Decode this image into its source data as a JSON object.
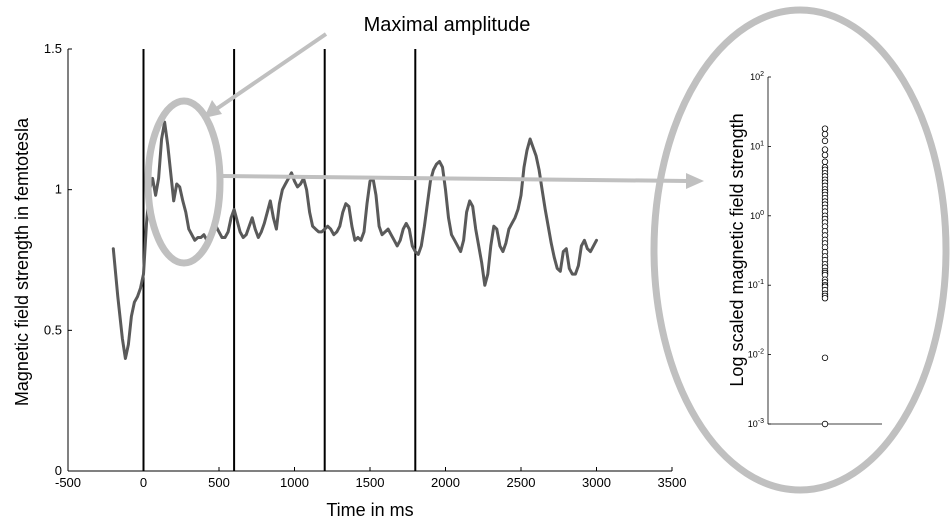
{
  "annotation": {
    "text": "Maximal amplitude"
  },
  "colors": {
    "signal": "#5a5a5a",
    "annotation": "#c0c0c0",
    "event_line": "#000000"
  },
  "chart_data": [
    {
      "type": "line",
      "title": "",
      "xlabel": "Time in ms",
      "ylabel": "Magnetic field strength in femtotesla",
      "xlim": [
        -500,
        3500
      ],
      "ylim": [
        0,
        1.5
      ],
      "x_ticks": [
        -500,
        0,
        500,
        1000,
        1500,
        2000,
        2500,
        3000,
        3500
      ],
      "y_ticks": [
        0,
        0.5,
        1,
        1.5
      ],
      "x_tick_labels": [
        "-500",
        "0",
        "500",
        "1000",
        "1500",
        "2000",
        "2500",
        "3000",
        "3500"
      ],
      "y_tick_labels": [
        "0",
        "0.5",
        "1",
        "1.5"
      ],
      "event_markers_ms": [
        0,
        600,
        1200,
        1800
      ],
      "grid": false,
      "series": [
        {
          "x": [
            -200,
            -170,
            -140,
            -120,
            -100,
            -80,
            -60,
            -40,
            -20,
            0,
            20,
            40,
            60,
            80,
            100,
            120,
            140,
            160,
            180,
            200,
            220,
            240,
            260,
            280,
            300,
            320,
            340,
            360,
            380,
            400,
            420,
            440,
            460,
            480,
            500,
            520,
            540,
            560,
            580,
            600,
            620,
            640,
            660,
            680,
            700,
            720,
            740,
            760,
            780,
            800,
            820,
            840,
            860,
            880,
            900,
            920,
            940,
            960,
            980,
            1000,
            1020,
            1040,
            1060,
            1080,
            1100,
            1120,
            1140,
            1160,
            1180,
            1200,
            1220,
            1240,
            1260,
            1280,
            1300,
            1320,
            1340,
            1360,
            1380,
            1400,
            1420,
            1440,
            1460,
            1480,
            1500,
            1520,
            1540,
            1560,
            1580,
            1600,
            1620,
            1640,
            1660,
            1680,
            1700,
            1720,
            1740,
            1760,
            1780,
            1800,
            1820,
            1840,
            1860,
            1880,
            1900,
            1920,
            1940,
            1960,
            1980,
            2000,
            2020,
            2040,
            2060,
            2080,
            2100,
            2120,
            2140,
            2160,
            2180,
            2200,
            2220,
            2240,
            2260,
            2280,
            2300,
            2320,
            2340,
            2360,
            2380,
            2400,
            2420,
            2440,
            2460,
            2480,
            2500,
            2520,
            2540,
            2560,
            2580,
            2600,
            2620,
            2640,
            2660,
            2680,
            2700,
            2720,
            2740,
            2760,
            2780,
            2800,
            2820,
            2840,
            2860,
            2880,
            2900,
            2920,
            2940,
            2960,
            2980,
            3000
          ],
          "values": [
            0.79,
            0.62,
            0.47,
            0.4,
            0.45,
            0.55,
            0.6,
            0.62,
            0.65,
            0.7,
            0.88,
            1.0,
            1.04,
            0.98,
            1.04,
            1.18,
            1.24,
            1.16,
            1.06,
            0.96,
            1.02,
            1.01,
            0.96,
            0.92,
            0.86,
            0.84,
            0.82,
            0.83,
            0.83,
            0.84,
            0.82,
            0.84,
            0.86,
            0.87,
            0.85,
            0.83,
            0.83,
            0.85,
            0.9,
            0.93,
            0.89,
            0.85,
            0.83,
            0.84,
            0.87,
            0.9,
            0.86,
            0.83,
            0.85,
            0.88,
            0.92,
            0.96,
            0.9,
            0.86,
            0.95,
            1.0,
            1.02,
            1.04,
            1.06,
            1.03,
            1.01,
            1.02,
            1.04,
            1.0,
            0.92,
            0.87,
            0.86,
            0.85,
            0.85,
            0.86,
            0.87,
            0.86,
            0.84,
            0.85,
            0.87,
            0.92,
            0.95,
            0.94,
            0.87,
            0.82,
            0.83,
            0.82,
            0.85,
            0.95,
            1.03,
            1.04,
            0.98,
            0.87,
            0.84,
            0.85,
            0.86,
            0.84,
            0.82,
            0.8,
            0.82,
            0.86,
            0.88,
            0.86,
            0.8,
            0.78,
            0.77,
            0.8,
            0.87,
            0.95,
            1.03,
            1.07,
            1.09,
            1.1,
            1.08,
            1.0,
            0.9,
            0.84,
            0.82,
            0.8,
            0.78,
            0.82,
            0.92,
            0.96,
            0.94,
            0.86,
            0.8,
            0.74,
            0.66,
            0.7,
            0.8,
            0.87,
            0.86,
            0.8,
            0.78,
            0.81,
            0.86,
            0.88,
            0.9,
            0.93,
            0.98,
            1.08,
            1.14,
            1.18,
            1.15,
            1.12,
            1.07,
            1.0,
            0.93,
            0.87,
            0.81,
            0.76,
            0.72,
            0.71,
            0.78,
            0.79,
            0.72,
            0.7,
            0.7,
            0.73,
            0.8,
            0.82,
            0.79,
            0.78,
            0.8,
            0.82
          ]
        }
      ]
    },
    {
      "type": "scatter",
      "title": "",
      "xlabel": "",
      "ylabel": "Log scaled magnetic field strength",
      "yscale": "log",
      "ylim": [
        0.001,
        100
      ],
      "y_ticks": [
        0.001,
        0.01,
        0.1,
        1,
        10,
        100
      ],
      "y_tick_labels": [
        {
          "base": "10",
          "exp": "-3"
        },
        {
          "base": "10",
          "exp": "-2"
        },
        {
          "base": "10",
          "exp": "-1"
        },
        {
          "base": "10",
          "exp": "0"
        },
        {
          "base": "10",
          "exp": "1"
        },
        {
          "base": "10",
          "exp": "2"
        }
      ],
      "grid": false,
      "marker": "open-circle",
      "values": [
        18,
        15,
        12,
        9,
        7.5,
        6,
        5,
        4.6,
        4.1,
        3.7,
        3.3,
        3.0,
        2.7,
        2.4,
        2.2,
        2.0,
        1.8,
        1.6,
        1.45,
        1.3,
        1.15,
        1.0,
        0.9,
        0.8,
        0.7,
        0.6,
        0.52,
        0.45,
        0.4,
        0.35,
        0.3,
        0.26,
        0.23,
        0.2,
        0.18,
        0.16,
        0.15,
        0.14,
        0.12,
        0.11,
        0.1,
        0.095,
        0.085,
        0.075,
        0.07,
        0.065,
        0.009,
        0.001
      ]
    }
  ]
}
